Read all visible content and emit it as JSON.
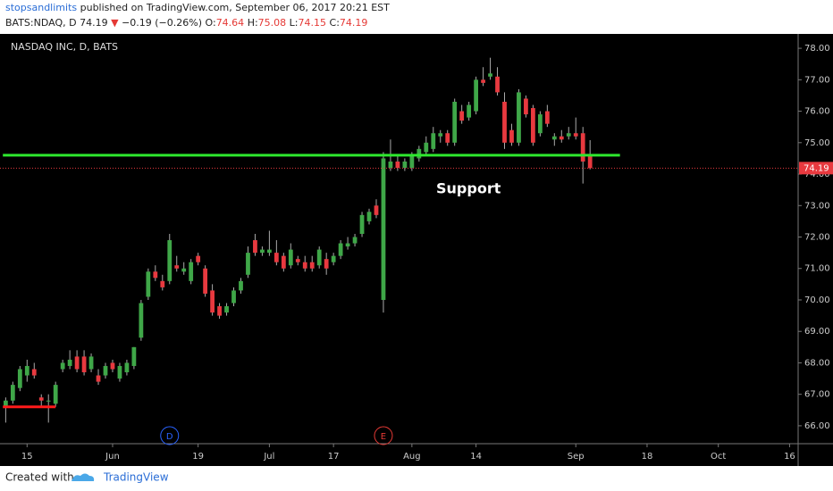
{
  "header": {
    "author": "stopsandlimits",
    "published": "published on TradingView.com, September 06, 2017 20:21 EST",
    "symbol": "BATS:NDAQ, D",
    "arrow": "▼",
    "change": "−0.19 (−0.26%)",
    "open_label": "O:",
    "high_label": "H:",
    "low_label": "L:",
    "close_label": "C:"
  },
  "footer": {
    "created": "Created with",
    "brand": "TradingView"
  },
  "chart_data": {
    "type": "candlestick",
    "title": "NASDAQ INC, D, BATS",
    "x": [
      -3,
      -2,
      -1,
      0,
      1,
      2,
      3,
      4,
      5,
      6,
      7,
      8,
      9,
      10,
      11,
      12,
      13,
      14,
      15,
      16,
      17,
      18,
      19,
      20,
      21,
      22,
      23,
      24,
      25,
      26,
      27,
      28,
      29,
      30,
      31,
      32,
      33,
      34,
      35,
      36,
      37,
      38,
      39,
      40,
      41,
      42,
      43,
      44,
      45,
      46,
      47,
      48,
      49,
      50,
      51,
      52,
      53,
      54,
      55,
      56,
      57,
      58,
      59,
      60,
      61,
      62,
      63,
      64,
      65,
      66,
      67,
      68,
      69,
      70,
      71,
      72,
      73,
      74,
      75,
      76,
      77,
      78,
      79
    ],
    "open": [
      66.6,
      66.8,
      67.2,
      67.6,
      67.8,
      66.9,
      66.8,
      66.7,
      67.8,
      67.9,
      68.2,
      68.2,
      67.8,
      67.6,
      67.6,
      68.0,
      67.5,
      67.7,
      67.9,
      68.8,
      70.1,
      70.9,
      70.6,
      70.6,
      71.1,
      70.9,
      70.6,
      71.4,
      71.0,
      70.3,
      69.8,
      69.6,
      69.9,
      70.3,
      70.8,
      71.9,
      71.5,
      71.5,
      71.5,
      71.4,
      71.1,
      71.3,
      71.2,
      71.2,
      71.1,
      71.3,
      71.2,
      71.4,
      71.7,
      71.8,
      72.1,
      72.5,
      73.0,
      70.0,
      74.2,
      74.4,
      74.2,
      74.2,
      74.5,
      74.7,
      74.8,
      75.2,
      75.3,
      75.0,
      76.0,
      75.8,
      76.0,
      77.0,
      77.1,
      77.1,
      76.3,
      75.4,
      75.0,
      76.4,
      76.1,
      75.3,
      76.0,
      75.1,
      75.2,
      75.2,
      75.3,
      75.3,
      74.64
    ],
    "high": [
      66.9,
      67.4,
      67.9,
      68.1,
      68.0,
      67.0,
      67.0,
      67.4,
      68.1,
      68.4,
      68.4,
      68.4,
      68.3,
      67.8,
      68.0,
      68.1,
      68.0,
      68.1,
      68.5,
      70.0,
      71.0,
      71.1,
      70.8,
      72.1,
      71.4,
      71.2,
      71.3,
      71.5,
      71.1,
      70.5,
      69.9,
      69.9,
      70.4,
      70.7,
      71.7,
      72.1,
      71.7,
      72.2,
      71.9,
      71.5,
      71.8,
      71.4,
      71.4,
      71.4,
      71.7,
      71.5,
      71.5,
      71.9,
      72.0,
      72.1,
      72.8,
      72.9,
      73.2,
      74.7,
      75.1,
      74.6,
      74.5,
      74.7,
      74.9,
      75.2,
      75.5,
      75.4,
      75.4,
      76.4,
      76.2,
      76.3,
      77.1,
      77.4,
      77.7,
      77.4,
      76.6,
      75.6,
      76.7,
      76.5,
      76.2,
      76.0,
      76.2,
      75.3,
      75.4,
      75.5,
      75.8,
      75.5,
      75.08
    ],
    "low": [
      66.1,
      66.7,
      67.1,
      67.4,
      67.5,
      66.6,
      66.1,
      66.6,
      67.7,
      67.8,
      67.7,
      67.6,
      67.7,
      67.3,
      67.5,
      67.7,
      67.4,
      67.6,
      67.8,
      68.7,
      70.0,
      70.6,
      70.3,
      70.5,
      70.9,
      70.8,
      70.5,
      71.1,
      70.1,
      69.5,
      69.4,
      69.5,
      69.8,
      70.2,
      70.7,
      71.4,
      71.4,
      71.4,
      71.1,
      70.9,
      71.0,
      71.1,
      70.9,
      70.9,
      71.0,
      70.8,
      71.1,
      71.3,
      71.6,
      71.7,
      72.0,
      72.4,
      72.6,
      69.6,
      74.1,
      74.1,
      74.1,
      74.1,
      74.4,
      74.6,
      74.7,
      75.0,
      74.9,
      74.9,
      75.6,
      75.7,
      75.9,
      76.8,
      77.0,
      76.5,
      74.8,
      74.9,
      74.9,
      75.8,
      74.9,
      75.2,
      75.5,
      74.9,
      75.0,
      75.1,
      75.1,
      73.7,
      74.15
    ],
    "close": [
      66.8,
      67.3,
      67.8,
      67.9,
      67.6,
      66.8,
      66.8,
      67.3,
      68.0,
      68.1,
      67.8,
      67.7,
      68.2,
      67.4,
      67.9,
      67.8,
      67.9,
      68.0,
      68.5,
      69.9,
      70.9,
      70.7,
      70.4,
      71.9,
      71.0,
      71.0,
      71.2,
      71.2,
      70.2,
      69.6,
      69.5,
      69.8,
      70.3,
      70.6,
      71.5,
      71.5,
      71.6,
      71.6,
      71.2,
      71.0,
      71.6,
      71.2,
      71.0,
      71.0,
      71.6,
      71.0,
      71.4,
      71.8,
      71.8,
      72.0,
      72.7,
      72.8,
      72.7,
      74.5,
      74.4,
      74.2,
      74.4,
      74.6,
      74.8,
      75.0,
      75.3,
      75.3,
      75.0,
      76.3,
      75.7,
      76.2,
      77.0,
      76.9,
      77.2,
      76.6,
      75.0,
      75.0,
      76.6,
      75.9,
      75.0,
      75.9,
      75.6,
      75.2,
      75.1,
      75.3,
      75.2,
      74.4,
      74.19
    ],
    "up_color": "#3fa748",
    "down_color": "#e8393f",
    "ylim": [
      65.43,
      78.4
    ],
    "yticks": [
      {
        "value": 66,
        "label": "66.00"
      },
      {
        "value": 67,
        "label": "67.00"
      },
      {
        "value": 68,
        "label": "68.00"
      },
      {
        "value": 69,
        "label": "69.00"
      },
      {
        "value": 70,
        "label": "70.00"
      },
      {
        "value": 71,
        "label": "71.00"
      },
      {
        "value": 72,
        "label": "72.00"
      },
      {
        "value": 73,
        "label": "73.00"
      },
      {
        "value": 74,
        "label": "74.00"
      },
      {
        "value": 75,
        "label": "75.00"
      },
      {
        "value": 76,
        "label": "76.00"
      },
      {
        "value": 77,
        "label": "77.00"
      },
      {
        "value": 78,
        "label": "78.00"
      }
    ],
    "xlim": [
      -3.8,
      108.2
    ],
    "xticks": [
      {
        "value": 0,
        "label": "15"
      },
      {
        "value": 12,
        "label": "Jun"
      },
      {
        "value": 24,
        "label": "19"
      },
      {
        "value": 34,
        "label": "Jul"
      },
      {
        "value": 43,
        "label": "17"
      },
      {
        "value": 54,
        "label": "Aug"
      },
      {
        "value": 63,
        "label": "14"
      },
      {
        "value": 77,
        "label": "Sep"
      },
      {
        "value": 87,
        "label": "18"
      },
      {
        "value": 97,
        "label": "Oct"
      },
      {
        "value": 107,
        "label": "16"
      }
    ],
    "grid": false,
    "levels": [
      {
        "value": 74.6,
        "x": [
          -3.4,
          83.2
        ],
        "color": "#2ee82e"
      },
      {
        "value": 66.6,
        "x": [
          -3.4,
          4
        ],
        "color": "#ff1a1a"
      }
    ],
    "annotations": [
      {
        "text": "Support"
      }
    ],
    "events": [
      {
        "label": "D",
        "x": 20,
        "color": "#2962ff"
      },
      {
        "label": "E",
        "x": 50,
        "color": "#e53935"
      }
    ]
  }
}
